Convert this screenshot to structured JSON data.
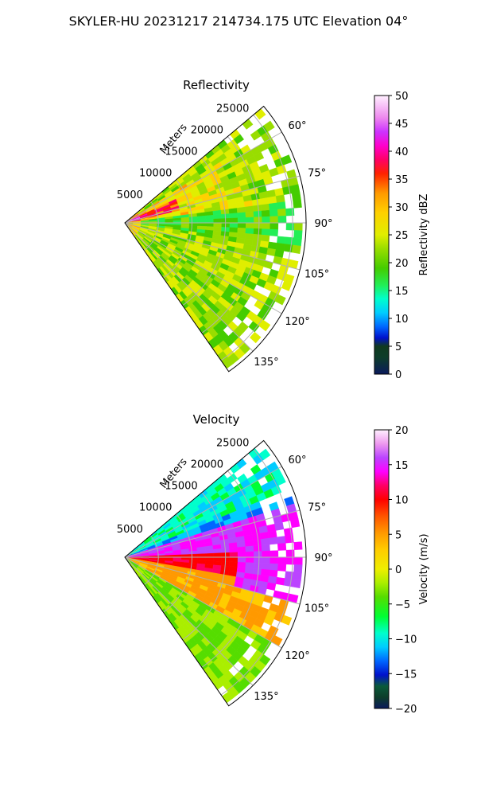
{
  "figure": {
    "suptitle": "SKYLER-HU  20231217  214734.175 UTC Elevation 04°"
  },
  "chart_data": [
    {
      "type": "polar-sector",
      "title": "Reflectivity",
      "range_axis_label": "Meters",
      "range_ticks": [
        "5000",
        "10000",
        "15000",
        "20000",
        "25000"
      ],
      "range_tick_values": [
        5000,
        10000,
        15000,
        20000,
        25000
      ],
      "rmax": 27000,
      "azimuth_range_deg": [
        50,
        145
      ],
      "azimuth_ticks": [
        "60°",
        "75°",
        "90°",
        "105°",
        "120°",
        "135°"
      ],
      "azimuth_tick_values": [
        60,
        75,
        90,
        105,
        120,
        135
      ],
      "grid": true,
      "colorbar": {
        "label": "Reflectivity dBZ",
        "vmin": 0,
        "vmax": 50,
        "ticks": [
          "0",
          "5",
          "10",
          "15",
          "20",
          "25",
          "30",
          "35",
          "40",
          "45",
          "50"
        ],
        "tick_values": [
          0,
          5,
          10,
          15,
          20,
          25,
          30,
          35,
          40,
          45,
          50
        ]
      },
      "field_pattern": "mostly 20–30 dBZ, higher (32–40 dBZ) near radar along 60°–80° azimuth band"
    },
    {
      "type": "polar-sector",
      "title": "Velocity",
      "range_axis_label": "Meters",
      "range_ticks": [
        "5000",
        "10000",
        "15000",
        "20000",
        "25000"
      ],
      "range_tick_values": [
        5000,
        10000,
        15000,
        20000,
        25000
      ],
      "rmax": 27000,
      "azimuth_range_deg": [
        50,
        145
      ],
      "azimuth_ticks": [
        "60°",
        "75°",
        "90°",
        "105°",
        "120°",
        "135°"
      ],
      "azimuth_tick_values": [
        60,
        75,
        90,
        105,
        120,
        135
      ],
      "grid": true,
      "colorbar": {
        "label": "Velocity (m/s)",
        "vmin": -20,
        "vmax": 20,
        "ticks": [
          "−20",
          "−15",
          "−10",
          "−5",
          "0",
          "5",
          "10",
          "15",
          "20"
        ],
        "tick_values": [
          -20,
          -15,
          -10,
          -5,
          0,
          5,
          10,
          15,
          20
        ]
      },
      "field_pattern": "≈ -8 m/s at 55°–70°, ≈ +15 m/s at 70°–87°, ≈ +10 m/s at 87°–100°, ≈ +5 m/s at 100°–120°, ≈ -3 m/s at 120°–145°"
    }
  ]
}
